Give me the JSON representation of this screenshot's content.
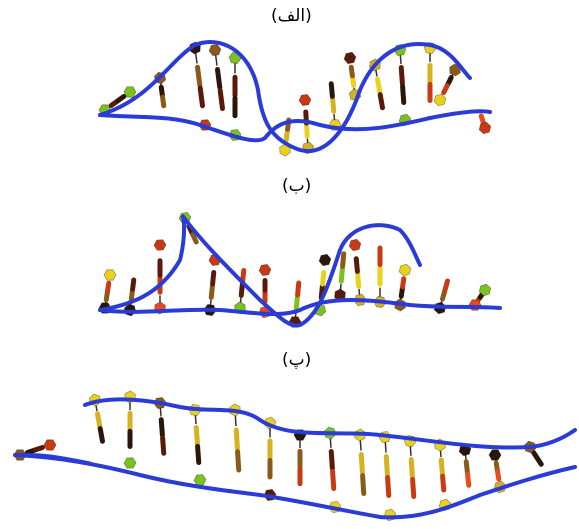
{
  "panels": [
    {
      "label": "(الف)",
      "backbone_color": "#2b3bd6"
    },
    {
      "label": "(ب)",
      "backbone_color": "#2b3bd6"
    },
    {
      "label": "(پ)",
      "backbone_color": "#2b3bd6"
    }
  ],
  "base_colors": [
    "#d6b21e",
    "#8a5a1a",
    "#5a1a0a",
    "#c83a12",
    "#e8d21e",
    "#2a160a",
    "#7ac21e",
    "#e84a1a"
  ]
}
